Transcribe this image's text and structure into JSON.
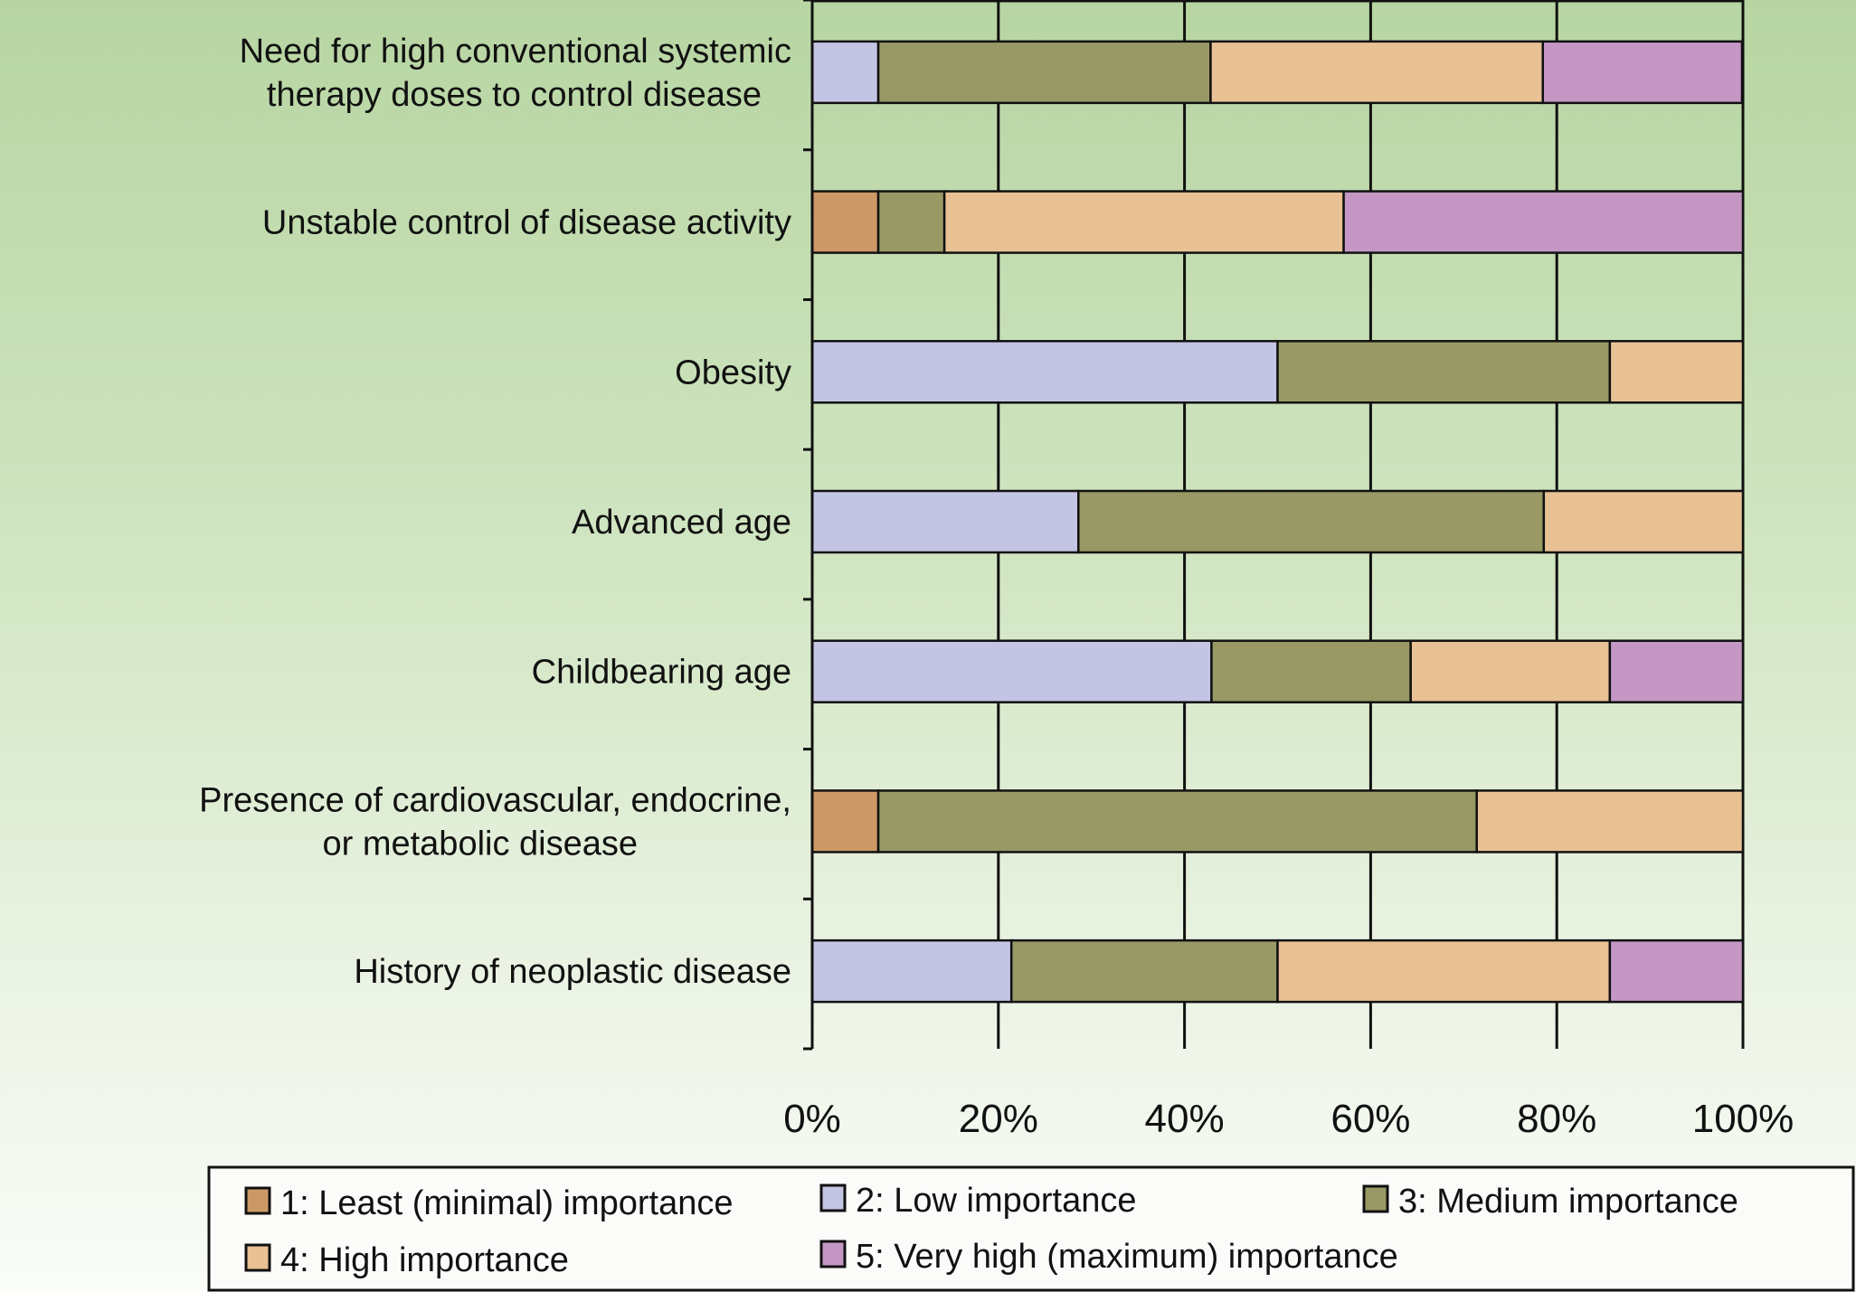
{
  "chart_data": {
    "type": "bar",
    "stacked": true,
    "orientation": "horizontal",
    "percent": true,
    "categories": [
      [
        "Need for high conventional systemic",
        "therapy doses to control disease"
      ],
      [
        "Unstable control of disease activity"
      ],
      [
        "Obesity"
      ],
      [
        "Advanced age"
      ],
      [
        "Childbearing age"
      ],
      [
        "Presence of cardiovascular, endocrine,",
        "or metabolic disease"
      ],
      [
        "History of neoplastic disease"
      ]
    ],
    "series": [
      {
        "name": "1: Least (minimal) importance",
        "color": "#cc9966",
        "values": [
          0,
          7.1,
          0,
          0,
          0,
          7.1,
          0
        ]
      },
      {
        "name": "2: Low importance",
        "color": "#c4c4e4",
        "values": [
          7.1,
          0,
          50.0,
          28.6,
          42.9,
          0,
          21.4
        ]
      },
      {
        "name": "3: Medium importance",
        "color": "#999966",
        "values": [
          35.7,
          7.1,
          35.7,
          50.0,
          21.4,
          64.3,
          28.6
        ]
      },
      {
        "name": "4: High importance",
        "color": "#e8c194",
        "values": [
          35.7,
          42.9,
          14.3,
          21.4,
          21.4,
          28.6,
          35.7
        ]
      },
      {
        "name": "5: Very high (maximum) importance",
        "color": "#c497c4",
        "values": [
          21.4,
          42.9,
          0,
          0,
          14.3,
          0,
          14.3
        ]
      }
    ],
    "xlim": [
      0,
      100
    ],
    "xticks": [
      "0%",
      "20%",
      "40%",
      "60%",
      "80%",
      "100%"
    ],
    "grid": "vertical",
    "legend_position": "bottom",
    "title": "",
    "xlabel": "",
    "ylabel": ""
  }
}
